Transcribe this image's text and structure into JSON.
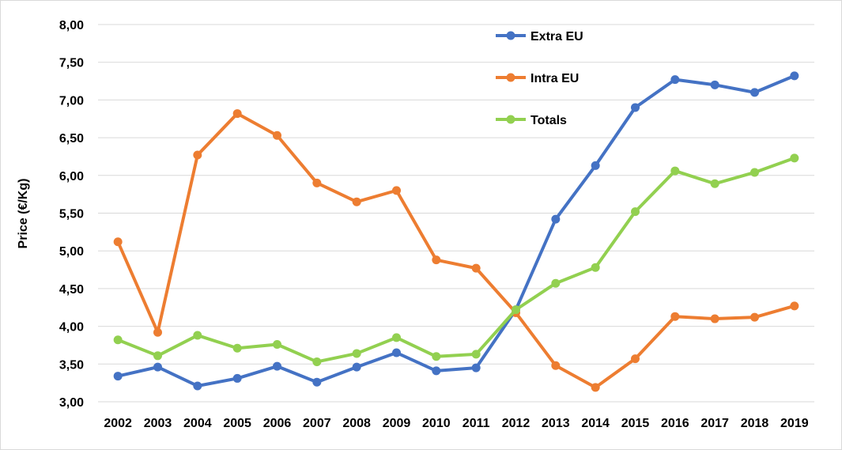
{
  "chart_data": {
    "type": "line",
    "title": "",
    "xlabel": "",
    "ylabel": "Price (€/Kg)",
    "ylim": [
      3.0,
      8.0
    ],
    "yticks": [
      "3,00",
      "3,50",
      "4,00",
      "4,50",
      "5,00",
      "5,50",
      "6,00",
      "6,50",
      "7,00",
      "7,50",
      "8,00"
    ],
    "ytick_values": [
      3.0,
      3.5,
      4.0,
      4.5,
      5.0,
      5.5,
      6.0,
      6.5,
      7.0,
      7.5,
      8.0
    ],
    "categories": [
      "2002",
      "2003",
      "2004",
      "2005",
      "2006",
      "2007",
      "2008",
      "2009",
      "2010",
      "2011",
      "2012",
      "2013",
      "2014",
      "2015",
      "2016",
      "2017",
      "2018",
      "2019"
    ],
    "grid": "horizontal",
    "legend_position": "top-center",
    "series": [
      {
        "name": "Extra EU",
        "color": "#4472c4",
        "values": [
          3.34,
          3.46,
          3.21,
          3.31,
          3.47,
          3.26,
          3.46,
          3.65,
          3.41,
          3.45,
          4.22,
          5.42,
          6.13,
          6.9,
          7.27,
          7.2,
          7.1,
          7.32
        ]
      },
      {
        "name": "Intra EU",
        "color": "#ed7d31",
        "values": [
          5.12,
          3.92,
          6.27,
          6.82,
          6.53,
          5.9,
          5.65,
          5.8,
          4.88,
          4.77,
          4.18,
          3.48,
          3.19,
          3.57,
          4.13,
          4.1,
          4.12,
          4.27
        ]
      },
      {
        "name": "Totals",
        "color": "#92d050",
        "values": [
          3.82,
          3.61,
          3.88,
          3.71,
          3.76,
          3.53,
          3.64,
          3.85,
          3.6,
          3.63,
          4.22,
          4.57,
          4.78,
          5.52,
          6.06,
          5.89,
          6.04,
          6.23
        ]
      }
    ]
  }
}
